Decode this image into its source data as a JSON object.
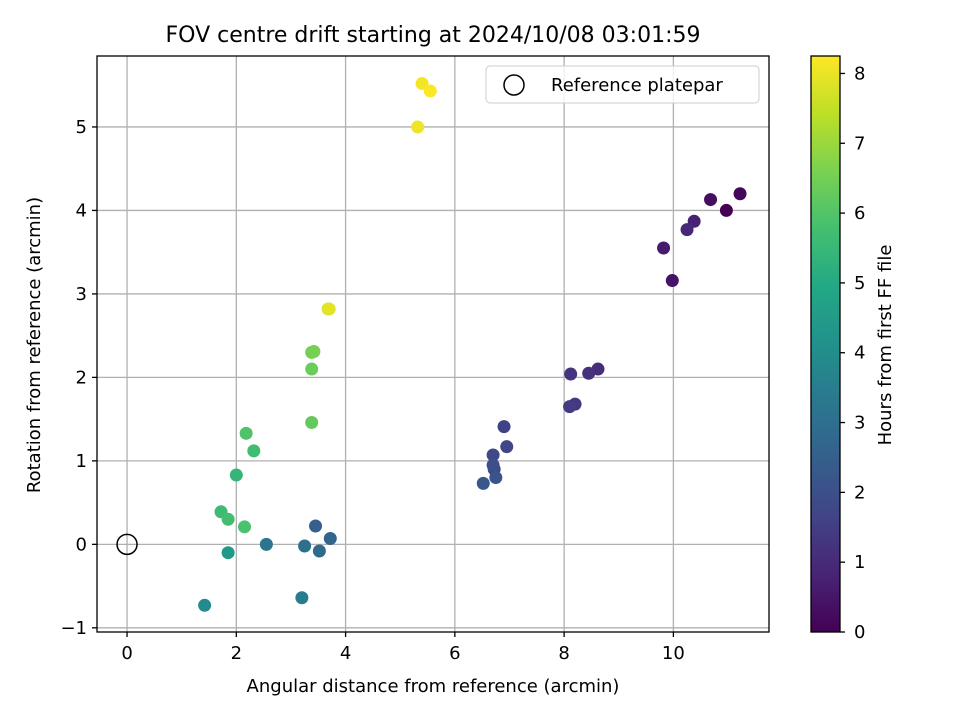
{
  "chart_data": {
    "type": "scatter",
    "title": "FOV centre drift starting at 2024/10/08 03:01:59",
    "xlabel": "Angular distance from reference (arcmin)",
    "ylabel": "Rotation from reference (arcmin)",
    "xlim": [
      -0.55,
      11.75
    ],
    "ylim": [
      -1.05,
      5.85
    ],
    "xticks": [
      0,
      2,
      4,
      6,
      8,
      10
    ],
    "yticks": [
      -1,
      0,
      1,
      2,
      3,
      4,
      5
    ],
    "grid": true,
    "colormap": "viridis",
    "colorbar": {
      "label": "Hours from first FF file",
      "range": [
        0,
        8.25
      ],
      "ticks": [
        0,
        1,
        2,
        3,
        4,
        5,
        6,
        7,
        8
      ]
    },
    "legend": {
      "position": "top-right",
      "entries": [
        "Reference platepar"
      ]
    },
    "reference_point": {
      "x": 0,
      "y": 0,
      "label": "Reference platepar"
    },
    "points": [
      {
        "x": 10.97,
        "y": 4.0,
        "hours": 0.0
      },
      {
        "x": 11.22,
        "y": 4.2,
        "hours": 0.15
      },
      {
        "x": 10.68,
        "y": 4.13,
        "hours": 0.3
      },
      {
        "x": 9.98,
        "y": 3.16,
        "hours": 0.45
      },
      {
        "x": 9.82,
        "y": 3.55,
        "hours": 0.6
      },
      {
        "x": 10.38,
        "y": 3.87,
        "hours": 0.75
      },
      {
        "x": 10.25,
        "y": 3.77,
        "hours": 0.9
      },
      {
        "x": 8.62,
        "y": 2.1,
        "hours": 1.05
      },
      {
        "x": 8.45,
        "y": 2.05,
        "hours": 1.15
      },
      {
        "x": 8.12,
        "y": 2.04,
        "hours": 1.25
      },
      {
        "x": 8.2,
        "y": 1.68,
        "hours": 1.35
      },
      {
        "x": 8.1,
        "y": 1.65,
        "hours": 1.45
      },
      {
        "x": 6.9,
        "y": 1.41,
        "hours": 1.6
      },
      {
        "x": 6.95,
        "y": 1.17,
        "hours": 1.7
      },
      {
        "x": 6.7,
        "y": 1.07,
        "hours": 1.8
      },
      {
        "x": 6.72,
        "y": 0.9,
        "hours": 1.9
      },
      {
        "x": 6.7,
        "y": 0.95,
        "hours": 2.0
      },
      {
        "x": 6.75,
        "y": 0.8,
        "hours": 2.1
      },
      {
        "x": 6.52,
        "y": 0.73,
        "hours": 2.25
      },
      {
        "x": 3.45,
        "y": 0.22,
        "hours": 2.5
      },
      {
        "x": 3.72,
        "y": 0.07,
        "hours": 2.7
      },
      {
        "x": 3.52,
        "y": -0.08,
        "hours": 2.85
      },
      {
        "x": 3.25,
        "y": -0.02,
        "hours": 3.0
      },
      {
        "x": 2.55,
        "y": 0.0,
        "hours": 3.2
      },
      {
        "x": 3.2,
        "y": -0.64,
        "hours": 3.4
      },
      {
        "x": 1.42,
        "y": -0.73,
        "hours": 3.9
      },
      {
        "x": 1.85,
        "y": -0.1,
        "hours": 4.4
      },
      {
        "x": 2.0,
        "y": 0.83,
        "hours": 5.4
      },
      {
        "x": 1.72,
        "y": 0.39,
        "hours": 5.6
      },
      {
        "x": 1.85,
        "y": 0.3,
        "hours": 5.75
      },
      {
        "x": 2.15,
        "y": 0.21,
        "hours": 5.85
      },
      {
        "x": 2.32,
        "y": 1.12,
        "hours": 5.7
      },
      {
        "x": 2.18,
        "y": 1.33,
        "hours": 5.95
      },
      {
        "x": 3.38,
        "y": 1.46,
        "hours": 6.25
      },
      {
        "x": 3.38,
        "y": 2.1,
        "hours": 6.35
      },
      {
        "x": 3.38,
        "y": 2.3,
        "hours": 6.45
      },
      {
        "x": 3.42,
        "y": 2.31,
        "hours": 6.55
      },
      {
        "x": 3.68,
        "y": 2.82,
        "hours": 7.85
      },
      {
        "x": 3.7,
        "y": 2.82,
        "hours": 7.9
      },
      {
        "x": 5.32,
        "y": 5.0,
        "hours": 8.05
      },
      {
        "x": 5.4,
        "y": 5.52,
        "hours": 8.15
      },
      {
        "x": 5.55,
        "y": 5.43,
        "hours": 8.25
      }
    ]
  }
}
